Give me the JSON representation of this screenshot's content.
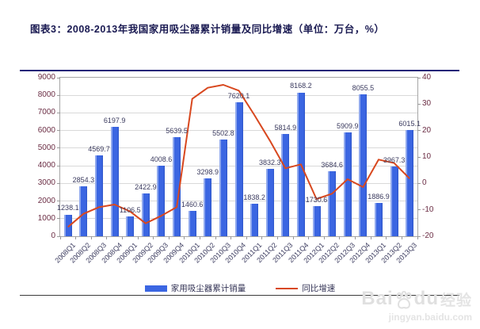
{
  "page": {
    "title": "图表3：2008-2013年我国家用吸尘器累计销量及同比增速（单位：万台，%）"
  },
  "legend": {
    "bars_label": "家用吸尘器累计销量",
    "line_label": "同比增速"
  },
  "watermark": {
    "brand_left": "Bai",
    "brand_right": "du",
    "brand_suffix": "经验",
    "url": "jingyan.baidu.com"
  },
  "colors": {
    "bar": "#3b66e2",
    "line": "#d8481f",
    "axis_label": "#6b2d44",
    "data_label": "#3a3a5e",
    "title": "#1a1a52"
  },
  "chart_data": {
    "type": "bar",
    "subtype": "bar+line-dual-axis",
    "title": "图表3：2008-2013年我国家用吸尘器累计销量及同比增速（单位：万台，%）",
    "categories": [
      "2008Q1",
      "2008Q2",
      "2008Q3",
      "2008Q4",
      "2009Q1",
      "2009Q2",
      "2009Q3",
      "2009Q4",
      "2010Q1",
      "2010Q2",
      "2010Q3",
      "2010Q4",
      "2011Q1",
      "2011Q2",
      "2011Q3",
      "2011Q4",
      "2012Q1",
      "2012Q2",
      "2012Q3",
      "2012Q4",
      "2013Q1",
      "2013Q2",
      "2013Q3"
    ],
    "series": [
      {
        "name": "家用吸尘器累计销量",
        "type": "bar",
        "axis": "left",
        "unit": "万台",
        "values": [
          1238.1,
          2854.3,
          4569.7,
          6197.9,
          1106.5,
          2422.9,
          4008.6,
          5639.5,
          1460.6,
          3298.9,
          5502.8,
          7620.1,
          1838.2,
          3832.3,
          5814.9,
          8168.2,
          1730.6,
          3684.6,
          5909.9,
          8055.5,
          1886.9,
          3967.3,
          6015.1
        ]
      },
      {
        "name": "同比增速",
        "type": "line",
        "axis": "right",
        "unit": "%",
        "values": [
          -16.5,
          -11.5,
          -9.0,
          -8.0,
          -10.6,
          -15.1,
          -12.3,
          -9.0,
          32.0,
          36.2,
          37.3,
          35.1,
          25.9,
          16.2,
          5.7,
          7.2,
          -5.9,
          -3.9,
          1.6,
          -1.4,
          9.0,
          7.7,
          1.8
        ]
      }
    ],
    "left_axis": {
      "min": 0,
      "max": 9000,
      "step": 1000
    },
    "right_axis": {
      "min": -20,
      "max": 40,
      "step": 10
    },
    "grid": true,
    "legend_position": "bottom",
    "data_labels": "bars-only"
  }
}
